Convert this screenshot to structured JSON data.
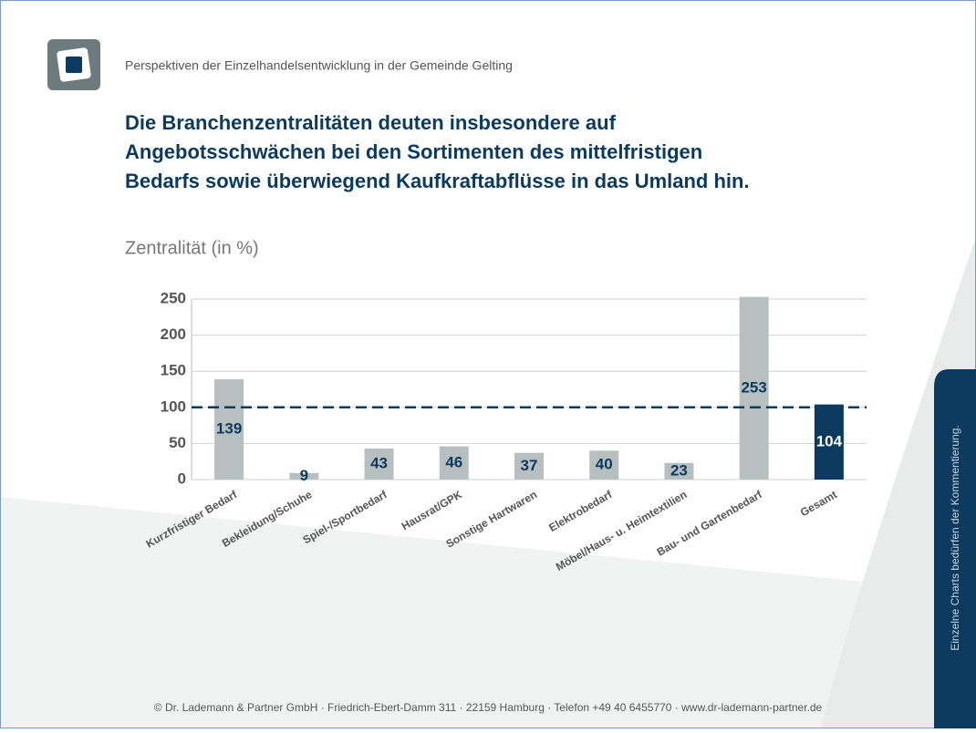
{
  "header": {
    "subtitle": "Perspektiven der Einzelhandelsentwicklung in der Gemeinde Gelting"
  },
  "headline": [
    "Die Branchenzentralitäten deuten insbesondere auf",
    "Angebotsschwächen bei den Sortimenten des mittelfristigen",
    "Bedarfs sowie überwiegend Kaufkraftabflüsse in das Umland hin."
  ],
  "chart_data": {
    "type": "bar",
    "title": "Zentralität (in %)",
    "categories": [
      "Kurzfristiger Bedarf",
      "Bekleidung/Schuhe",
      "Spiel-/Sportbedarf",
      "Hausrat/GPK",
      "Sonstige Hartwaren",
      "Elektrobedarf",
      "Möbel/Haus- u. Heimtextilien",
      "Bau- und Gartenbedarf",
      "Gesamt"
    ],
    "values": [
      139,
      9,
      43,
      46,
      37,
      40,
      23,
      253,
      104
    ],
    "colors": [
      "#b8bfc0",
      "#b8bfc0",
      "#b8bfc0",
      "#b8bfc0",
      "#b8bfc0",
      "#b8bfc0",
      "#b8bfc0",
      "#b8bfc0",
      "#0b3a5e"
    ],
    "ylim": [
      0,
      250
    ],
    "yticks": [
      0,
      50,
      100,
      150,
      200,
      250
    ],
    "grid": true,
    "reference_line": 100
  },
  "side_note": "Einzelne Charts bedürfen der Kommentierung.",
  "footer": "© Dr. Lademann & Partner GmbH · Friedrich-Ebert-Damm 311 · 22159 Hamburg · Telefon +49 40 6455770 · www.dr-lademann-partner.de"
}
